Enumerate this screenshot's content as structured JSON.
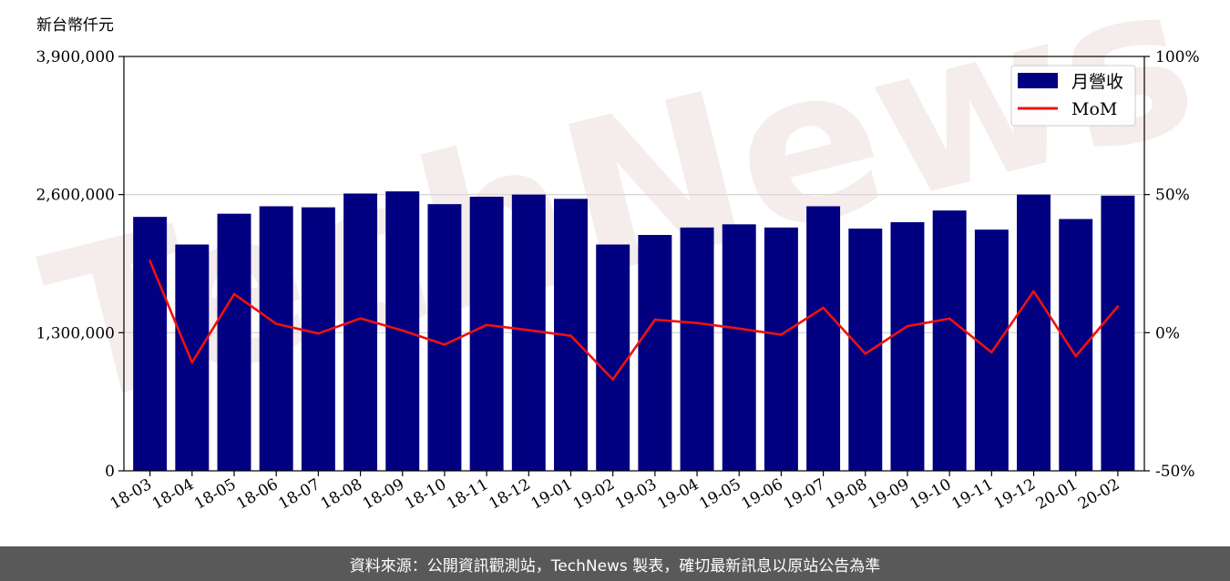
{
  "chart_data": {
    "type": "bar",
    "ylabel": "新台幣仟元",
    "categories": [
      "18-03",
      "18-04",
      "18-05",
      "18-06",
      "18-07",
      "18-08",
      "18-09",
      "18-10",
      "18-11",
      "18-12",
      "19-01",
      "19-02",
      "19-03",
      "19-04",
      "19-05",
      "19-06",
      "19-07",
      "19-08",
      "19-09",
      "19-10",
      "19-11",
      "19-12",
      "20-01",
      "20-02"
    ],
    "series": [
      {
        "name": "月營收",
        "kind": "bar",
        "axis": "left",
        "color": "#000080",
        "values": [
          2390000,
          2130000,
          2420000,
          2490000,
          2480000,
          2610000,
          2630000,
          2510000,
          2580000,
          2600000,
          2560000,
          2130000,
          2220000,
          2290000,
          2320000,
          2290000,
          2490000,
          2280000,
          2340000,
          2450000,
          2270000,
          2600000,
          2370000,
          2590000
        ]
      },
      {
        "name": "MoM",
        "kind": "line",
        "axis": "right",
        "color": "#ee1111",
        "values": [
          26,
          -10.8,
          14,
          3.2,
          -0.3,
          5.2,
          0.8,
          -4.3,
          2.8,
          0.9,
          -1.1,
          -16.9,
          4.7,
          3.5,
          1.5,
          -0.7,
          9,
          -7.6,
          2.4,
          5.1,
          -7.1,
          15,
          -8.5,
          9.5
        ]
      }
    ],
    "ylim": [
      0,
      3900000
    ],
    "y_ticks": [
      "0",
      "1,300,000",
      "2,600,000",
      "3,900,000"
    ],
    "y_tick_values": [
      0,
      1300000,
      2600000,
      3900000
    ],
    "y2lim": [
      -50,
      100
    ],
    "y2_ticks": [
      "-50%",
      "0%",
      "50%",
      "100%"
    ],
    "y2_tick_values": [
      -50,
      0,
      50,
      100
    ],
    "grid": "horizontal",
    "legend_position": "top-right"
  },
  "watermark": "TechNews",
  "footer": "資料來源：公開資訊觀測站，TechNews 製表，確切最新訊息以原站公告為準"
}
